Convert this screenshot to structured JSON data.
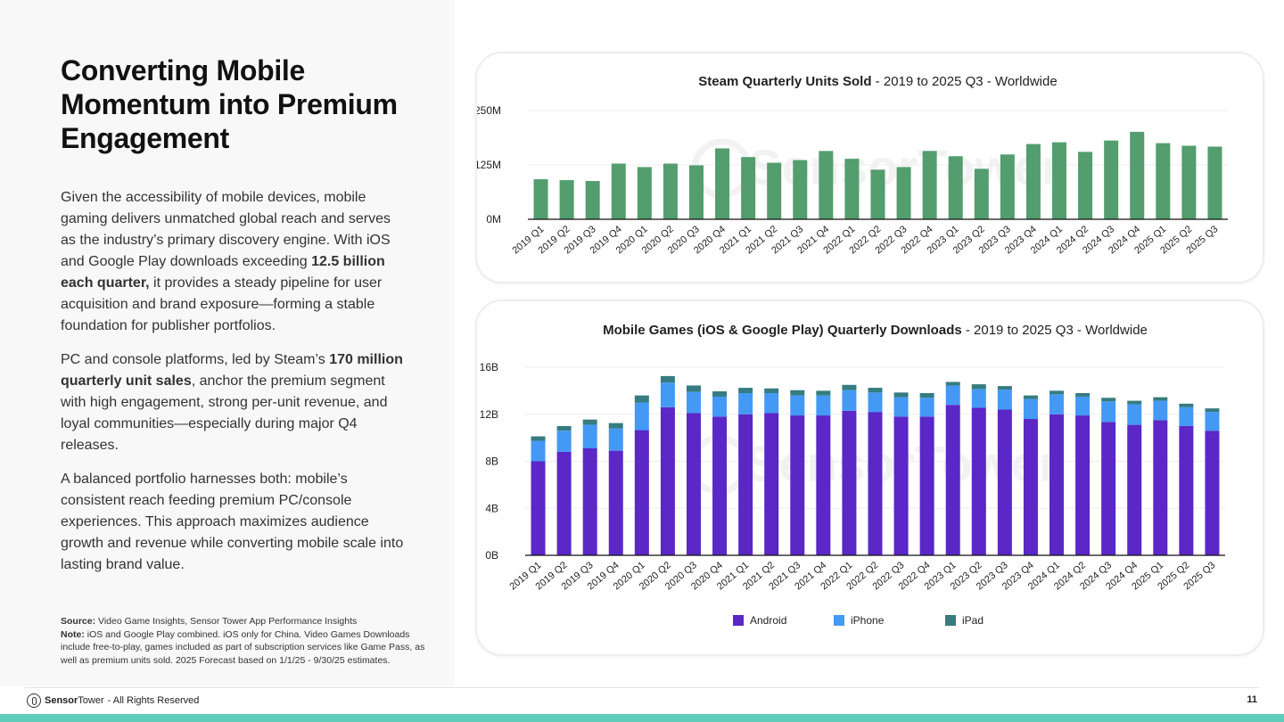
{
  "left": {
    "title": "Converting Mobile Momentum into Premium Engagement",
    "p1_a": "Given the accessibility of mobile devices, mobile gaming delivers unmatched global reach and serves as the industry’s primary discovery engine. With iOS and Google Play downloads exceeding ",
    "p1_b": "12.5 billion each quarter,",
    "p1_c": " it provides a steady pipeline for user acquisition and brand exposure—forming a stable foundation for publisher portfolios.",
    "p2_a": "PC and console platforms, led by Steam’s ",
    "p2_b": "170 million quarterly unit sales",
    "p2_c": ", anchor the premium segment with high engagement, strong per-unit revenue, and loyal communities—especially during major Q4 releases.",
    "p3": "A balanced portfolio harnesses both: mobile’s consistent reach feeding premium PC/console experiences. This approach maximizes audience growth and revenue while converting mobile scale into lasting brand value.",
    "source_label": "Source:",
    "source": " Video Game Insights, Sensor Tower App Performance Insights",
    "note_label": "Note:",
    "note": " iOS and Google Play combined. iOS only for China. Video Games Downloads include free-to-play, games included as part of subscription services like Game Pass, as well as premium units sold. 2025 Forecast based on 1/1/25 - 9/30/25 estimates."
  },
  "footer": {
    "brand_bold": "Sensor",
    "brand": "Tower",
    "rights": " - All Rights Reserved",
    "page": "11"
  },
  "watermark": "SensorTower",
  "chart_data": [
    {
      "type": "bar",
      "title": "Steam Quarterly Units Sold",
      "subtitle": " - 2019 to 2025 Q3 - Worldwide",
      "categories": [
        "2019 Q1",
        "2019 Q2",
        "2019 Q3",
        "2019 Q4",
        "2020 Q1",
        "2020 Q2",
        "2020 Q3",
        "2020 Q4",
        "2021 Q1",
        "2021 Q2",
        "2021 Q3",
        "2021 Q4",
        "2022 Q1",
        "2022 Q2",
        "2022 Q3",
        "2022 Q4",
        "2023 Q1",
        "2023 Q2",
        "2023 Q3",
        "2023 Q4",
        "2024 Q1",
        "2024 Q2",
        "2024 Q3",
        "2024 Q4",
        "2025 Q1",
        "2025 Q2",
        "2025 Q3"
      ],
      "series": [
        {
          "values": [
            92,
            90,
            88,
            128,
            120,
            128,
            124,
            163,
            143,
            130,
            136,
            157,
            139,
            114,
            120,
            157,
            145,
            116,
            149,
            173,
            177,
            155,
            181,
            201,
            175,
            169,
            167
          ],
          "color": "#539d6e"
        }
      ],
      "yticks": [
        "0M",
        "125M",
        "250M"
      ],
      "ylim": [
        0,
        250
      ],
      "grid": true
    },
    {
      "type": "bar",
      "stacked": true,
      "title": "Mobile Games (iOS & Google Play) Quarterly Downloads",
      "subtitle": "  - 2019 to 2025 Q3 - Worldwide",
      "categories": [
        "2019 Q1",
        "2019 Q2",
        "2019 Q3",
        "2019 Q4",
        "2020 Q1",
        "2020 Q2",
        "2020 Q3",
        "2020 Q4",
        "2021 Q1",
        "2021 Q2",
        "2021 Q3",
        "2021 Q4",
        "2022 Q1",
        "2022 Q2",
        "2022 Q3",
        "2022 Q4",
        "2023 Q1",
        "2023 Q2",
        "2023 Q3",
        "2023 Q4",
        "2024 Q1",
        "2024 Q2",
        "2024 Q3",
        "2024 Q4",
        "2025 Q1",
        "2025 Q2",
        "2025 Q3"
      ],
      "series": [
        {
          "name": "Android",
          "color": "#5b27c6",
          "values": [
            8.0,
            8.8,
            9.1,
            8.9,
            10.65,
            12.6,
            12.1,
            11.8,
            12.0,
            12.1,
            11.9,
            11.9,
            12.3,
            12.2,
            11.8,
            11.8,
            12.8,
            12.55,
            12.4,
            11.6,
            12.0,
            11.9,
            11.35,
            11.1,
            11.5,
            11.0,
            10.6
          ]
        },
        {
          "name": "iPhone",
          "color": "#4499f5",
          "values": [
            1.74,
            1.8,
            2.0,
            1.9,
            2.35,
            2.1,
            1.8,
            1.7,
            1.8,
            1.7,
            1.7,
            1.7,
            1.75,
            1.65,
            1.65,
            1.6,
            1.65,
            1.6,
            1.7,
            1.7,
            1.7,
            1.6,
            1.75,
            1.75,
            1.65,
            1.6,
            1.6
          ]
        },
        {
          "name": "iPad",
          "color": "#367c80",
          "values": [
            0.38,
            0.4,
            0.45,
            0.45,
            0.6,
            0.55,
            0.55,
            0.45,
            0.45,
            0.4,
            0.45,
            0.4,
            0.45,
            0.4,
            0.4,
            0.4,
            0.3,
            0.4,
            0.3,
            0.3,
            0.3,
            0.3,
            0.3,
            0.3,
            0.3,
            0.3,
            0.3
          ]
        }
      ],
      "yticks": [
        "0B",
        "4B",
        "8B",
        "12B",
        "16B"
      ],
      "ylim": [
        0,
        16
      ],
      "grid": true,
      "legend": "bottom"
    }
  ]
}
